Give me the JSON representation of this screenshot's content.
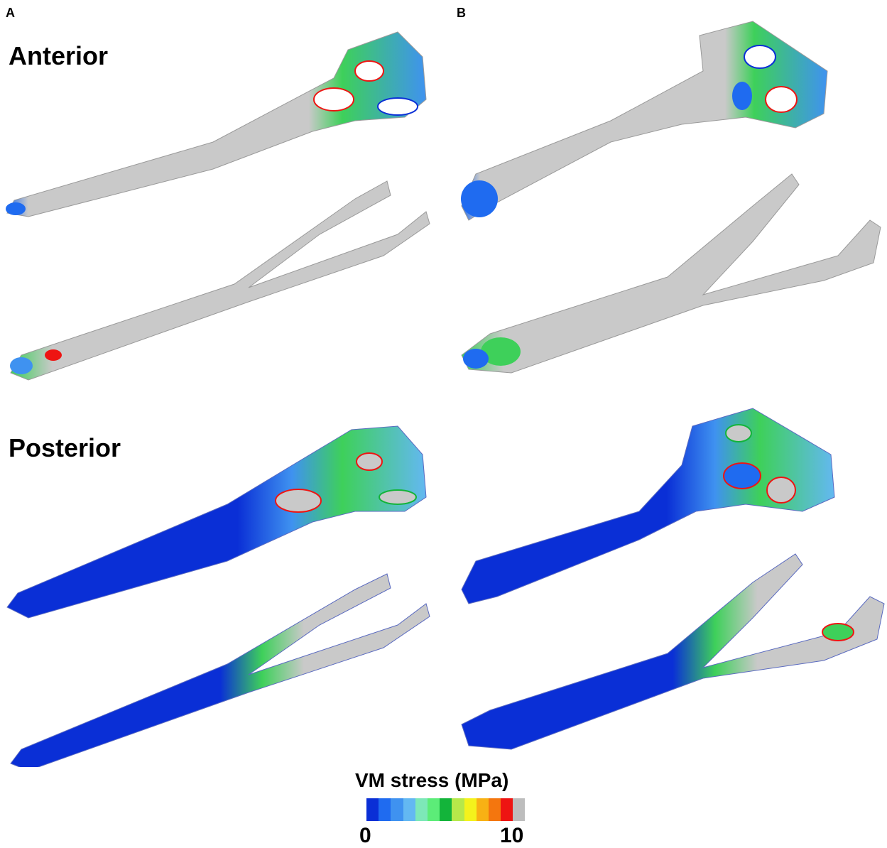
{
  "panels": {
    "a": "A",
    "b": "B"
  },
  "rows": {
    "anterior": "Anterior",
    "posterior": "Posterior"
  },
  "legend": {
    "title": "VM stress (MPa)",
    "min": "0",
    "max": "10",
    "colors": [
      "#0a2fd6",
      "#1f6bf0",
      "#3f92f0",
      "#63b8f2",
      "#7de8b8",
      "#5cec78",
      "#13b43a",
      "#b6e84a",
      "#f4f21c",
      "#f8b114",
      "#f4760e",
      "#ee1412",
      "#bdbdbd"
    ]
  },
  "stress_colors": {
    "low": "#0a2fd6",
    "mid": "#3ed05a",
    "high": "#ee1412",
    "above": "#c4c4c4"
  }
}
